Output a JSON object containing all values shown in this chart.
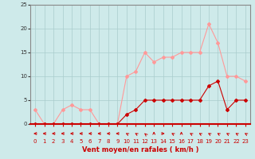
{
  "x": [
    0,
    1,
    2,
    3,
    4,
    5,
    6,
    7,
    8,
    9,
    10,
    11,
    12,
    13,
    14,
    15,
    16,
    17,
    18,
    19,
    20,
    21,
    22,
    23
  ],
  "rafales": [
    3,
    0,
    0,
    3,
    4,
    3,
    3,
    0,
    0,
    0,
    10,
    11,
    15,
    13,
    14,
    14,
    15,
    15,
    15,
    21,
    17,
    10,
    10,
    9
  ],
  "moyen": [
    0,
    0,
    0,
    0,
    0,
    0,
    0,
    0,
    0,
    0,
    2,
    3,
    5,
    5,
    5,
    5,
    5,
    5,
    5,
    8,
    9,
    3,
    5,
    5
  ],
  "bg_color": "#ceeaea",
  "grid_color": "#aacccc",
  "line_color_rafales": "#ff9999",
  "line_color_moyen": "#cc0000",
  "xlabel": "Vent moyen/en rafales ( km/h )",
  "ylim": [
    0,
    25
  ],
  "yticks": [
    0,
    5,
    10,
    15,
    20,
    25
  ],
  "xticks": [
    0,
    1,
    2,
    3,
    4,
    5,
    6,
    7,
    8,
    9,
    10,
    11,
    12,
    13,
    14,
    15,
    16,
    17,
    18,
    19,
    20,
    21,
    22,
    23
  ],
  "arrow_angles_deg": [
    270,
    270,
    270,
    270,
    270,
    270,
    270,
    270,
    270,
    270,
    225,
    225,
    210,
    180,
    90,
    225,
    180,
    225,
    225,
    225,
    225,
    225,
    225,
    225
  ]
}
